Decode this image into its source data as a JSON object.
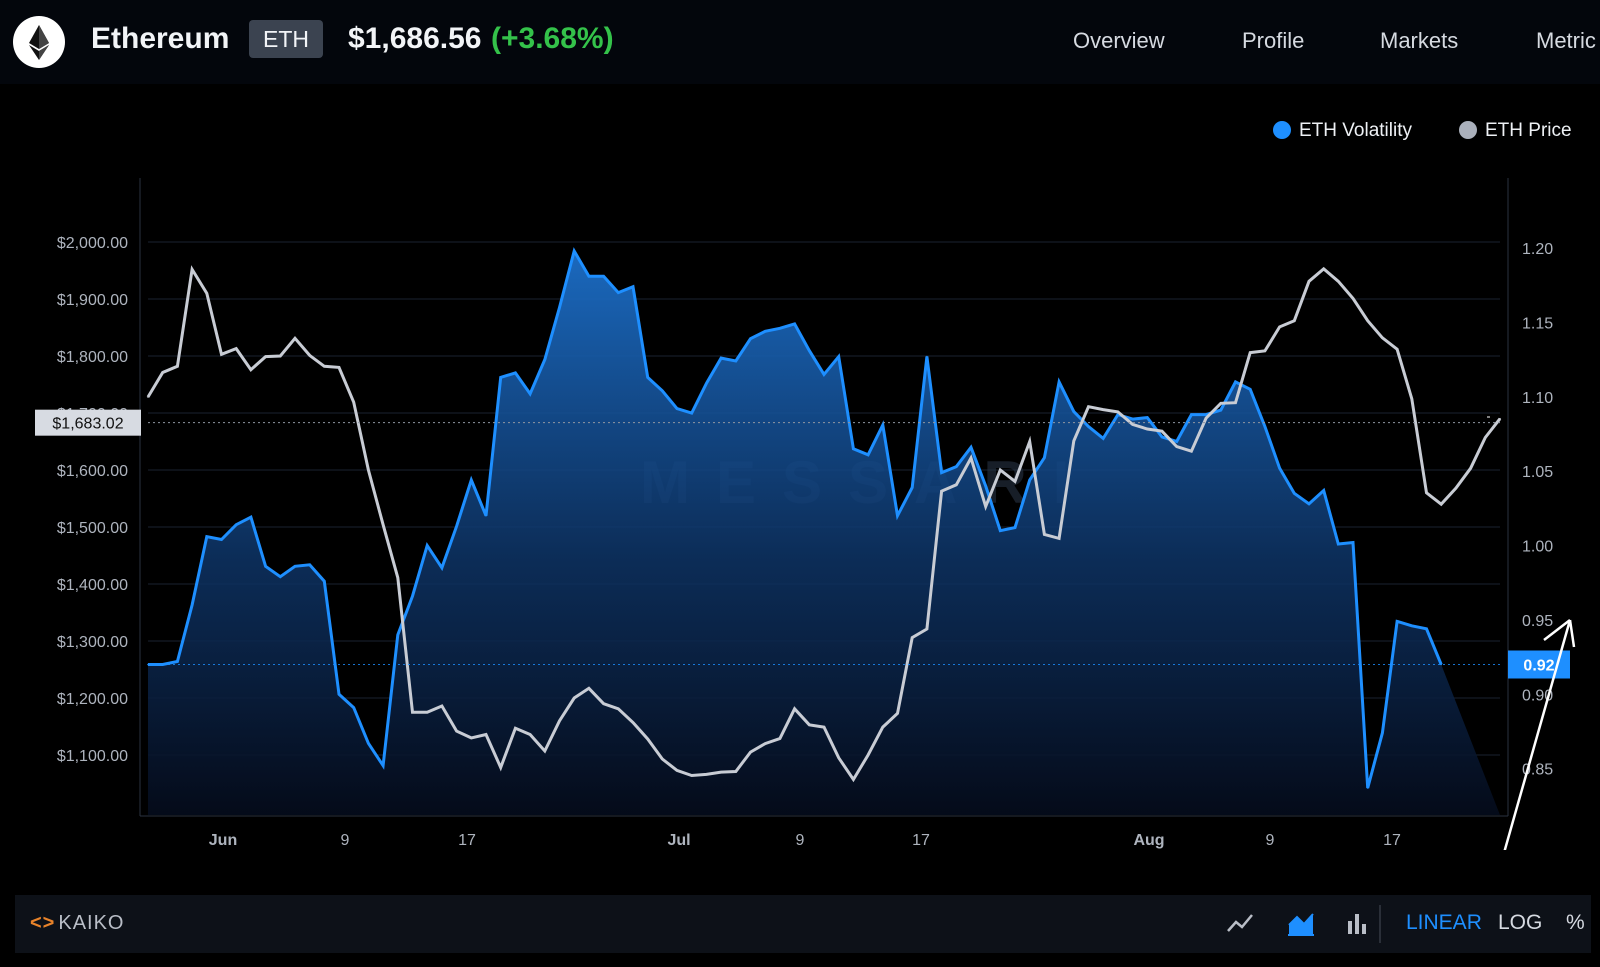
{
  "header": {
    "coin_name": "Ethereum",
    "ticker": "ETH",
    "price": "$1,686.56",
    "change": "(+3.68%)",
    "nav": [
      "Overview",
      "Profile",
      "Markets",
      "Metric"
    ]
  },
  "legend": [
    {
      "label": "ETH Volatility",
      "color": "#1e8fff"
    },
    {
      "label": "ETH Price",
      "color": "#aab0bb"
    }
  ],
  "watermark": "MESSARI",
  "footer": {
    "provider": "KAIKO",
    "tools": [
      "line-chart-icon",
      "area-chart-icon",
      "bar-chart-icon"
    ],
    "scale_options": [
      "LINEAR",
      "LOG",
      "%"
    ],
    "active_scale": "LINEAR"
  },
  "chart_data": {
    "type": "line",
    "x_ticks": [
      "Jun",
      "9",
      "17",
      "Jul",
      "9",
      "17",
      "Aug",
      "9",
      "17"
    ],
    "left_axis": {
      "ticks": [
        "$2,000.00",
        "$1,900.00",
        "$1,800.00",
        "$1,700.00",
        "$1,600.00",
        "$1,500.00",
        "$1,400.00",
        "$1,300.00",
        "$1,200.00",
        "$1,100.00"
      ],
      "range": [
        1000,
        2100
      ]
    },
    "right_axis": {
      "ticks": [
        "1.20",
        "1.15",
        "1.10",
        "1.05",
        "1.00",
        "0.95",
        "0.90",
        "0.85"
      ],
      "range": [
        0.82,
        1.24
      ]
    },
    "crosshair_price_label": "$1,683.02",
    "crosshair_price_value": 1683.02,
    "current_volatility_label": "0.92",
    "current_volatility_value": 0.92,
    "series": [
      {
        "name": "ETH Price",
        "axis": "left",
        "color": "#c8ccd4",
        "values": [
          1728,
          1771,
          1782,
          1952,
          1910,
          1803,
          1813,
          1776,
          1799,
          1800,
          1831,
          1801,
          1782,
          1780,
          1719,
          1600,
          1504,
          1411,
          1175,
          1175,
          1186,
          1142,
          1130,
          1136,
          1078,
          1147,
          1136,
          1107,
          1160,
          1200,
          1217,
          1190,
          1181,
          1157,
          1128,
          1093,
          1073,
          1064,
          1066,
          1070,
          1071,
          1105,
          1120,
          1129,
          1181,
          1153,
          1149,
          1095,
          1057,
          1100,
          1149,
          1173,
          1306,
          1321,
          1563,
          1574,
          1621,
          1536,
          1600,
          1580,
          1650,
          1487,
          1480,
          1651,
          1711,
          1706,
          1702,
          1680,
          1672,
          1668,
          1641,
          1633,
          1691,
          1717,
          1718,
          1806,
          1809,
          1851,
          1862,
          1931,
          1953,
          1931,
          1901,
          1862,
          1832,
          1812,
          1725,
          1560,
          1540,
          1568,
          1603,
          1657,
          1690
        ]
      },
      {
        "name": "ETH Volatility",
        "axis": "right",
        "color": "#1e8fff",
        "values": [
          0.92,
          0.92,
          0.922,
          0.96,
          1.006,
          1.004,
          1.014,
          1.019,
          0.986,
          0.979,
          0.986,
          0.987,
          0.976,
          0.9,
          0.891,
          0.867,
          0.852,
          0.94,
          0.966,
          1.0,
          0.985,
          1.013,
          1.044,
          1.02,
          1.113,
          1.116,
          1.102,
          1.125,
          1.16,
          1.198,
          1.181,
          1.181,
          1.17,
          1.174,
          1.113,
          1.104,
          1.092,
          1.089,
          1.109,
          1.126,
          1.124,
          1.139,
          1.144,
          1.146,
          1.149,
          1.131,
          1.115,
          1.127,
          1.065,
          1.061,
          1.081,
          1.02,
          1.039,
          1.127,
          1.049,
          1.053,
          1.066,
          1.04,
          1.01,
          1.012,
          1.044,
          1.059,
          1.11,
          1.09,
          1.08,
          1.072,
          1.088,
          1.085,
          1.086,
          1.073,
          1.07,
          1.088,
          1.088,
          1.091,
          1.11,
          1.105,
          1.08,
          1.052,
          1.035,
          1.028,
          1.037,
          1.001,
          1.002,
          0.837,
          0.874,
          0.949,
          0.946,
          0.944,
          0.92
        ]
      }
    ]
  }
}
